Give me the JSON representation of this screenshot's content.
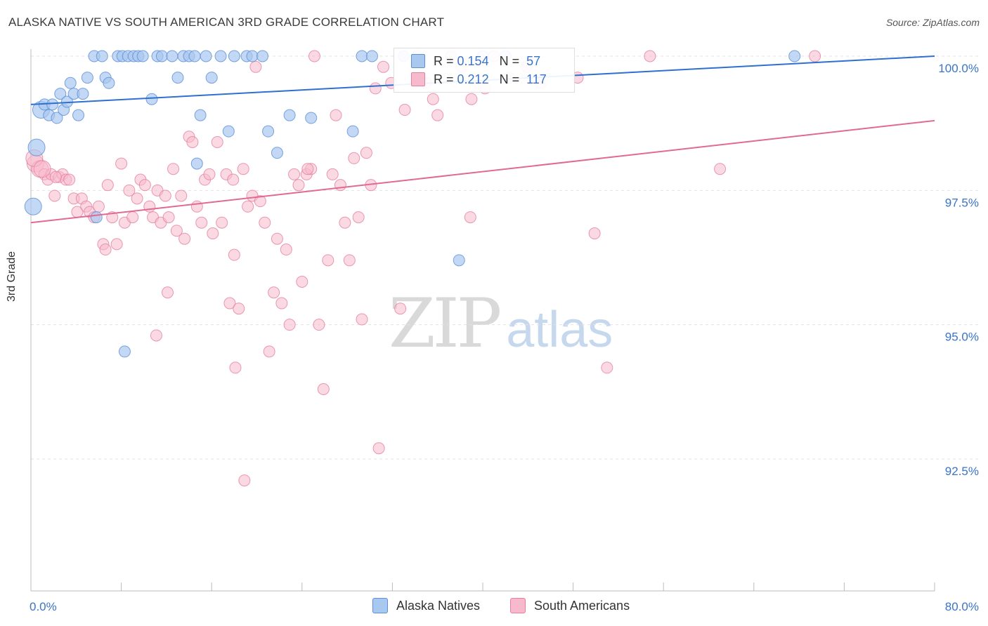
{
  "header": {
    "title": "ALASKA NATIVE VS SOUTH AMERICAN 3RD GRADE CORRELATION CHART",
    "source": "Source: ZipAtlas.com"
  },
  "watermark": {
    "zip": "ZIP",
    "atlas": "atlas"
  },
  "legend": {
    "rows": [
      {
        "r_label": "R =",
        "r_value": "0.154",
        "n_label": "N =",
        "n_value": "57"
      },
      {
        "r_label": "R =",
        "r_value": "0.212",
        "n_label": "N =",
        "n_value": "117"
      }
    ]
  },
  "chart_data": {
    "type": "scatter",
    "title": "ALASKA NATIVE VS SOUTH AMERICAN 3RD GRADE CORRELATION CHART",
    "xlabel": "",
    "ylabel": "3rd Grade",
    "xlim": [
      0,
      80
    ],
    "ylim": [
      90.0,
      100.4
    ],
    "x_tick_labels": [
      "0.0%",
      "80.0%"
    ],
    "y_ticks": [
      92.5,
      95.0,
      97.5,
      100.0
    ],
    "y_tick_labels": [
      "92.5%",
      "95.0%",
      "97.5%",
      "100.0%"
    ],
    "grid": true,
    "legend_position": "bottom-center",
    "colors": {
      "alaska_fill": "#a9c8f0",
      "alaska_stroke": "#5b8fd6",
      "alaska_line": "#2f6fd0",
      "south_fill": "#f7b9cc",
      "south_stroke": "#e57fa1",
      "south_line": "#e06a92",
      "axis_label_blue": "#3a74c9"
    },
    "series": [
      {
        "name": "Alaska Natives",
        "trend": {
          "x": [
            0,
            80
          ],
          "y": [
            99.1,
            100.0
          ]
        },
        "points": [
          [
            0.2,
            97.2
          ],
          [
            0.5,
            98.3
          ],
          [
            0.9,
            99.0
          ],
          [
            1.2,
            99.1
          ],
          [
            1.6,
            98.9
          ],
          [
            1.9,
            99.1
          ],
          [
            2.3,
            98.85
          ],
          [
            2.6,
            99.3
          ],
          [
            2.9,
            99.0
          ],
          [
            3.2,
            99.15
          ],
          [
            3.5,
            99.5
          ],
          [
            3.8,
            99.3
          ],
          [
            4.2,
            98.9
          ],
          [
            4.6,
            99.3
          ],
          [
            5.0,
            99.6
          ],
          [
            5.6,
            100.0
          ],
          [
            6.3,
            100.0
          ],
          [
            6.6,
            99.6
          ],
          [
            6.9,
            99.5
          ],
          [
            7.7,
            100.0
          ],
          [
            8.1,
            100.0
          ],
          [
            8.6,
            100.0
          ],
          [
            9.1,
            100.0
          ],
          [
            9.5,
            100.0
          ],
          [
            9.9,
            100.0
          ],
          [
            10.7,
            99.2
          ],
          [
            11.2,
            100.0
          ],
          [
            11.6,
            100.0
          ],
          [
            12.5,
            100.0
          ],
          [
            13.0,
            99.6
          ],
          [
            13.5,
            100.0
          ],
          [
            14.0,
            100.0
          ],
          [
            14.5,
            100.0
          ],
          [
            15.0,
            98.9
          ],
          [
            15.5,
            100.0
          ],
          [
            16.0,
            99.6
          ],
          [
            16.8,
            100.0
          ],
          [
            17.5,
            98.6
          ],
          [
            18.0,
            100.0
          ],
          [
            19.1,
            100.0
          ],
          [
            19.6,
            100.0
          ],
          [
            20.5,
            100.0
          ],
          [
            21.0,
            98.6
          ],
          [
            21.8,
            98.2
          ],
          [
            22.9,
            98.9
          ],
          [
            24.8,
            98.85
          ],
          [
            28.5,
            98.6
          ],
          [
            29.3,
            100.0
          ],
          [
            30.2,
            100.0
          ],
          [
            33.0,
            100.0
          ],
          [
            37.9,
            96.2
          ],
          [
            40.0,
            100.0
          ],
          [
            42.0,
            100.0
          ],
          [
            67.6,
            100.0
          ],
          [
            5.8,
            97.0
          ],
          [
            8.3,
            94.5
          ],
          [
            14.7,
            98.0
          ]
        ]
      },
      {
        "name": "South Americans",
        "trend": {
          "x": [
            0,
            80
          ],
          "y": [
            96.9,
            98.8
          ]
        },
        "points": [
          [
            0.4,
            98.0
          ],
          [
            0.8,
            97.9
          ],
          [
            1.2,
            97.8
          ],
          [
            1.5,
            97.7
          ],
          [
            1.8,
            97.8
          ],
          [
            2.1,
            97.4
          ],
          [
            2.5,
            97.75
          ],
          [
            2.8,
            97.8
          ],
          [
            3.1,
            97.7
          ],
          [
            3.4,
            97.7
          ],
          [
            3.8,
            97.35
          ],
          [
            4.1,
            97.1
          ],
          [
            4.5,
            97.35
          ],
          [
            4.9,
            97.2
          ],
          [
            5.2,
            97.1
          ],
          [
            5.6,
            97.0
          ],
          [
            6.0,
            97.2
          ],
          [
            6.4,
            96.5
          ],
          [
            6.8,
            97.6
          ],
          [
            7.2,
            97.0
          ],
          [
            7.6,
            96.5
          ],
          [
            8.0,
            98.0
          ],
          [
            8.3,
            96.9
          ],
          [
            8.7,
            97.5
          ],
          [
            9.0,
            97.0
          ],
          [
            9.4,
            97.35
          ],
          [
            9.7,
            97.7
          ],
          [
            10.1,
            97.6
          ],
          [
            10.5,
            97.2
          ],
          [
            10.8,
            97.0
          ],
          [
            11.2,
            97.5
          ],
          [
            11.5,
            96.9
          ],
          [
            11.9,
            97.4
          ],
          [
            12.2,
            97.0
          ],
          [
            12.6,
            97.9
          ],
          [
            12.9,
            96.75
          ],
          [
            13.3,
            97.4
          ],
          [
            13.6,
            96.6
          ],
          [
            14.0,
            98.5
          ],
          [
            14.3,
            98.4
          ],
          [
            14.7,
            97.2
          ],
          [
            15.1,
            96.9
          ],
          [
            15.4,
            97.7
          ],
          [
            15.8,
            97.8
          ],
          [
            16.1,
            96.7
          ],
          [
            16.5,
            98.4
          ],
          [
            16.9,
            96.9
          ],
          [
            17.3,
            97.8
          ],
          [
            17.6,
            95.4
          ],
          [
            18.0,
            96.3
          ],
          [
            18.4,
            95.3
          ],
          [
            18.8,
            97.9
          ],
          [
            19.2,
            97.2
          ],
          [
            19.6,
            97.4
          ],
          [
            19.9,
            99.8
          ],
          [
            20.3,
            97.3
          ],
          [
            20.7,
            96.9
          ],
          [
            21.1,
            94.5
          ],
          [
            21.5,
            95.6
          ],
          [
            21.8,
            96.6
          ],
          [
            22.2,
            95.4
          ],
          [
            22.6,
            96.4
          ],
          [
            22.9,
            95.0
          ],
          [
            23.3,
            97.8
          ],
          [
            23.7,
            97.6
          ],
          [
            24.0,
            95.8
          ],
          [
            24.4,
            97.8
          ],
          [
            24.8,
            97.9
          ],
          [
            25.1,
            100.0
          ],
          [
            25.5,
            95.0
          ],
          [
            25.9,
            93.8
          ],
          [
            26.3,
            96.2
          ],
          [
            26.7,
            97.8
          ],
          [
            27.0,
            98.9
          ],
          [
            27.4,
            97.6
          ],
          [
            27.8,
            96.9
          ],
          [
            28.2,
            96.2
          ],
          [
            28.6,
            98.1
          ],
          [
            29.0,
            97.0
          ],
          [
            29.3,
            95.1
          ],
          [
            29.7,
            98.2
          ],
          [
            30.1,
            97.6
          ],
          [
            30.5,
            99.4
          ],
          [
            30.8,
            92.7
          ],
          [
            31.2,
            99.8
          ],
          [
            31.9,
            99.5
          ],
          [
            32.7,
            95.3
          ],
          [
            33.1,
            99.0
          ],
          [
            34.2,
            100.0
          ],
          [
            35.0,
            99.5
          ],
          [
            35.6,
            99.2
          ],
          [
            36.0,
            98.9
          ],
          [
            37.2,
            100.0
          ],
          [
            38.1,
            99.8
          ],
          [
            39.0,
            99.2
          ],
          [
            40.2,
            99.4
          ],
          [
            41.0,
            100.0
          ],
          [
            42.3,
            99.6
          ],
          [
            43.9,
            99.8
          ],
          [
            45.1,
            99.5
          ],
          [
            48.4,
            99.6
          ],
          [
            49.9,
            96.7
          ],
          [
            51.0,
            94.2
          ],
          [
            54.8,
            100.0
          ],
          [
            61.0,
            97.9
          ],
          [
            69.4,
            100.0
          ],
          [
            12.1,
            95.6
          ],
          [
            11.1,
            94.8
          ],
          [
            18.9,
            92.1
          ],
          [
            18.1,
            94.2
          ],
          [
            0.3,
            98.1
          ],
          [
            1.0,
            97.9
          ],
          [
            2.2,
            97.75
          ],
          [
            6.6,
            96.4
          ],
          [
            17.9,
            97.7
          ],
          [
            38.9,
            97.0
          ],
          [
            24.5,
            97.9
          ]
        ]
      }
    ]
  }
}
